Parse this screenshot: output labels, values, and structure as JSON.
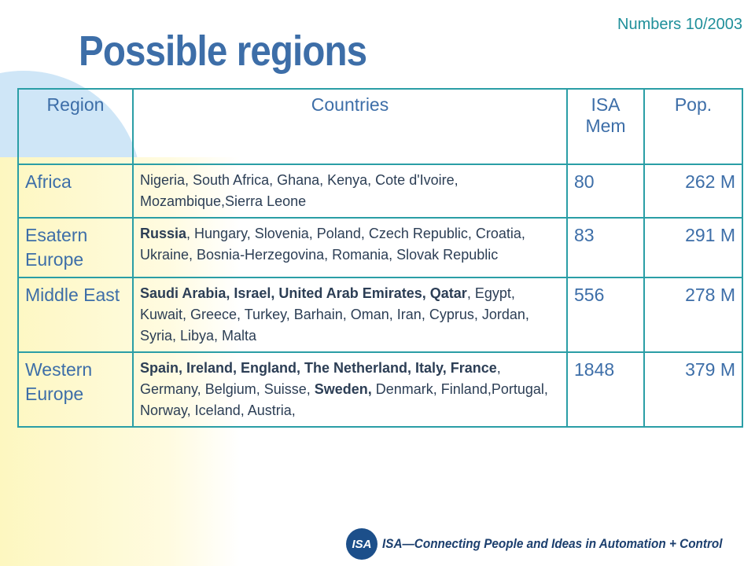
{
  "header": {
    "title": "Possible regions",
    "note": "Numbers 10/2003"
  },
  "table": {
    "columns": [
      "Region",
      "Countries",
      "ISA Mem",
      "Pop."
    ],
    "rows": [
      {
        "region": "Africa",
        "countries": [
          {
            "text": "Nigeria, South Africa, Ghana, Kenya, Cote d'Ivoire, Mozambique,Sierra Leone",
            "bold": false
          }
        ],
        "members": 80,
        "population": "262 M"
      },
      {
        "region": "Esatern Europe",
        "countries": [
          {
            "text": "Russia",
            "bold": true
          },
          {
            "text": ", Hungary, Slovenia, Poland, Czech Republic, Croatia, Ukraine, Bosnia-Herzegovina, Romania, Slovak Republic",
            "bold": false
          }
        ],
        "members": 83,
        "population": "291 M"
      },
      {
        "region": "Middle East",
        "countries": [
          {
            "text": "Saudi Arabia, Israel, United Arab Emirates, Qatar",
            "bold": true
          },
          {
            "text": ", Egypt, Kuwait, Greece, Turkey, Barhain, Oman, Iran, Cyprus, Jordan, Syria, Libya, Malta",
            "bold": false
          }
        ],
        "members": 556,
        "population": "278 M"
      },
      {
        "region": "Western Europe",
        "countries": [
          {
            "text": "Spain, Ireland, England, The Netherland, Italy, France",
            "bold": true
          },
          {
            "text": ", Germany, Belgium, Suisse, ",
            "bold": false
          },
          {
            "text": "Sweden,",
            "bold": true
          },
          {
            "text": " Denmark, Finland,Portugal, Norway, Iceland, Austria,",
            "bold": false
          }
        ],
        "members": 1848,
        "population": "379 M"
      }
    ]
  },
  "footer": {
    "logo": "ISA",
    "tagline": "ISA—Connecting People and Ideas in Automation + Control"
  }
}
